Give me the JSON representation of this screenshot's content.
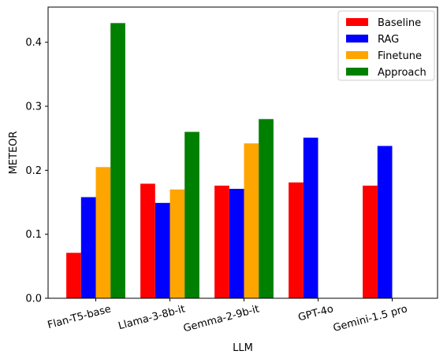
{
  "chart_data": {
    "type": "bar",
    "xlabel": "LLM",
    "ylabel": "METEOR",
    "categories": [
      "Flan-T5-base",
      "Llama-3-8b-it",
      "Gemma-2-9b-it",
      "GPT-4o",
      "Gemini-1.5 pro"
    ],
    "series": [
      {
        "name": "Baseline",
        "color": "#ff0000",
        "values": [
          0.071,
          0.179,
          0.176,
          0.181,
          0.176
        ]
      },
      {
        "name": "RAG",
        "color": "#0000ff",
        "values": [
          0.158,
          0.149,
          0.171,
          0.251,
          0.238
        ]
      },
      {
        "name": "Finetune",
        "color": "#ffa500",
        "values": [
          0.205,
          0.17,
          0.242,
          null,
          null
        ]
      },
      {
        "name": "Approach",
        "color": "#008000",
        "values": [
          0.43,
          0.26,
          0.28,
          null,
          null
        ]
      }
    ],
    "ylim": [
      0,
      0.455
    ],
    "yticks": [
      "0.0",
      "0.1",
      "0.2",
      "0.3",
      "0.4"
    ],
    "legend_position": "top-right",
    "grid": false
  }
}
